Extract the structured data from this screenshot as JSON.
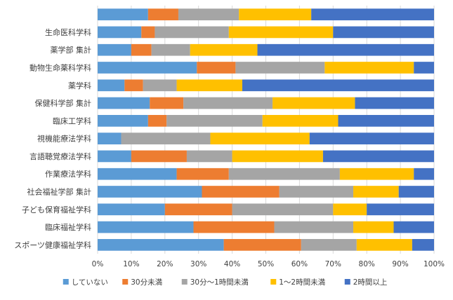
{
  "chart_data": {
    "type": "bar",
    "orientation": "horizontal",
    "stacked": "percent",
    "categories": [
      "",
      "生命医科学科",
      "薬学部 集計",
      "動物生命薬科学科",
      "薬学科",
      "保健科学部 集計",
      "臨床工学科",
      "視機能療法学科",
      "言語聴覚療法学科",
      "作業療法学科",
      "社会福祉学部 集計",
      "子ども保育福祉学科",
      "臨床福祉学科",
      "スポーツ健康福祉学科"
    ],
    "series": [
      {
        "name": "していない",
        "color": "#5B9BD5",
        "values": [
          15,
          13,
          10,
          29.5,
          8,
          15.5,
          15,
          7,
          10,
          23.5,
          31,
          20,
          28.5,
          37.5
        ]
      },
      {
        "name": "30分未満",
        "color": "#ED7D31",
        "values": [
          9,
          4,
          6,
          11.5,
          5.5,
          10,
          5.5,
          0,
          16.5,
          15.5,
          23,
          20,
          24,
          23
        ]
      },
      {
        "name": "30分～1時間未満",
        "color": "#A5A5A5",
        "values": [
          18,
          22,
          11.5,
          26.5,
          10,
          26.5,
          28.5,
          26.5,
          13.5,
          33,
          22,
          30,
          23.5,
          16.5
        ]
      },
      {
        "name": "1～2時間未満",
        "color": "#FFC000",
        "values": [
          21.5,
          31,
          20,
          26.5,
          19.5,
          24.5,
          22.5,
          29.5,
          27,
          22,
          13.5,
          10,
          12,
          16.5
        ]
      },
      {
        "name": "2時間以上",
        "color": "#4472C4",
        "values": [
          36.5,
          30,
          52.5,
          6,
          57,
          23.5,
          28.5,
          37,
          33,
          6,
          10.5,
          20,
          12,
          6.5
        ]
      }
    ],
    "x_ticks": [
      "0%",
      "10%",
      "20%",
      "30%",
      "40%",
      "50%",
      "60%",
      "70%",
      "80%",
      "90%",
      "100%"
    ],
    "xlim": [
      0,
      100
    ],
    "title": "",
    "xlabel": "",
    "ylabel": "",
    "grid": true,
    "legend_position": "bottom"
  }
}
